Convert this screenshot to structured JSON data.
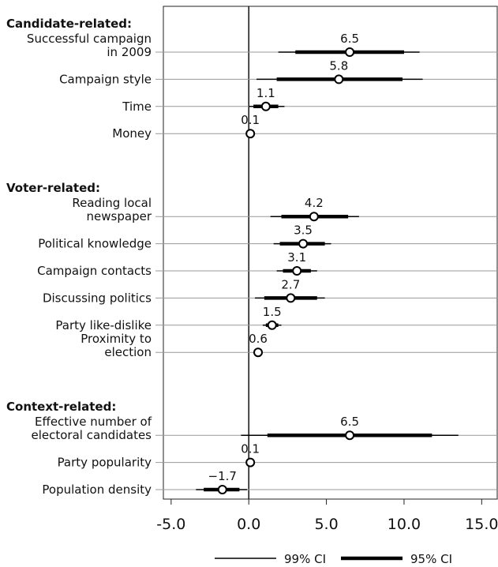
{
  "chart_data": {
    "type": "forest",
    "groups": [
      {
        "name": "Candidate-related:",
        "items": [
          {
            "label": [
              "Successful campaign",
              "in 2009"
            ],
            "value": 6.5,
            "ci99": [
              1.9,
              11.0
            ],
            "ci95": [
              3.0,
              10.0
            ]
          },
          {
            "label": [
              "Campaign style"
            ],
            "value": 5.8,
            "ci99": [
              0.5,
              11.2
            ],
            "ci95": [
              1.8,
              9.9
            ]
          },
          {
            "label": [
              "Time"
            ],
            "value": 1.1,
            "ci99": [
              0.0,
              2.3
            ],
            "ci95": [
              0.3,
              1.9
            ]
          },
          {
            "label": [
              "Money"
            ],
            "value": 0.1,
            "ci99": [
              0.0,
              0.2
            ],
            "ci95": [
              0.05,
              0.15
            ]
          }
        ]
      },
      {
        "name": "Voter-related:",
        "items": [
          {
            "label": [
              "Reading local",
              "newspaper"
            ],
            "value": 4.2,
            "ci99": [
              1.4,
              7.1
            ],
            "ci95": [
              2.1,
              6.4
            ]
          },
          {
            "label": [
              "Political knowledge"
            ],
            "value": 3.5,
            "ci99": [
              1.6,
              5.3
            ],
            "ci95": [
              2.0,
              4.9
            ]
          },
          {
            "label": [
              "Campaign contacts"
            ],
            "value": 3.1,
            "ci99": [
              1.8,
              4.4
            ],
            "ci95": [
              2.2,
              4.0
            ]
          },
          {
            "label": [
              "Discussing politics"
            ],
            "value": 2.7,
            "ci99": [
              0.4,
              4.9
            ],
            "ci95": [
              1.0,
              4.4
            ]
          },
          {
            "label": [
              "Party like-dislike"
            ],
            "value": 1.5,
            "ci99": [
              0.9,
              2.1
            ],
            "ci95": [
              1.1,
              1.9
            ]
          },
          {
            "label": [
              "Proximity to",
              "election"
            ],
            "value": 0.6,
            "ci99": [
              0.3,
              0.9
            ],
            "ci95": [
              0.4,
              0.8
            ]
          }
        ]
      },
      {
        "name": "Context-related:",
        "items": [
          {
            "label": [
              "Effective number of",
              "electoral candidates"
            ],
            "value": 6.5,
            "ci99": [
              -0.5,
              13.5
            ],
            "ci95": [
              1.2,
              11.8
            ]
          },
          {
            "label": [
              "Party popularity"
            ],
            "value": 0.1,
            "ci99": [
              0.0,
              0.2
            ],
            "ci95": [
              0.05,
              0.15
            ]
          },
          {
            "label": [
              "Population density"
            ],
            "value": -1.7,
            "value_label": "−1.7",
            "ci99": [
              -3.4,
              -0.1
            ],
            "ci95": [
              -2.9,
              -0.6
            ]
          }
        ]
      }
    ],
    "xlim": [
      -5.5,
      16
    ],
    "xticks": [
      {
        "value": -5,
        "label": "-5.0"
      },
      {
        "value": 0,
        "label": "0.0"
      },
      {
        "value": 5,
        "label": "5.0"
      },
      {
        "value": 10,
        "label": "10.0"
      },
      {
        "value": 15,
        "label": "15.0"
      }
    ],
    "legend": [
      {
        "name": "99% CI",
        "width": 1.5
      },
      {
        "name": "95% CI",
        "width": 4.5
      }
    ],
    "color": "#000000"
  }
}
